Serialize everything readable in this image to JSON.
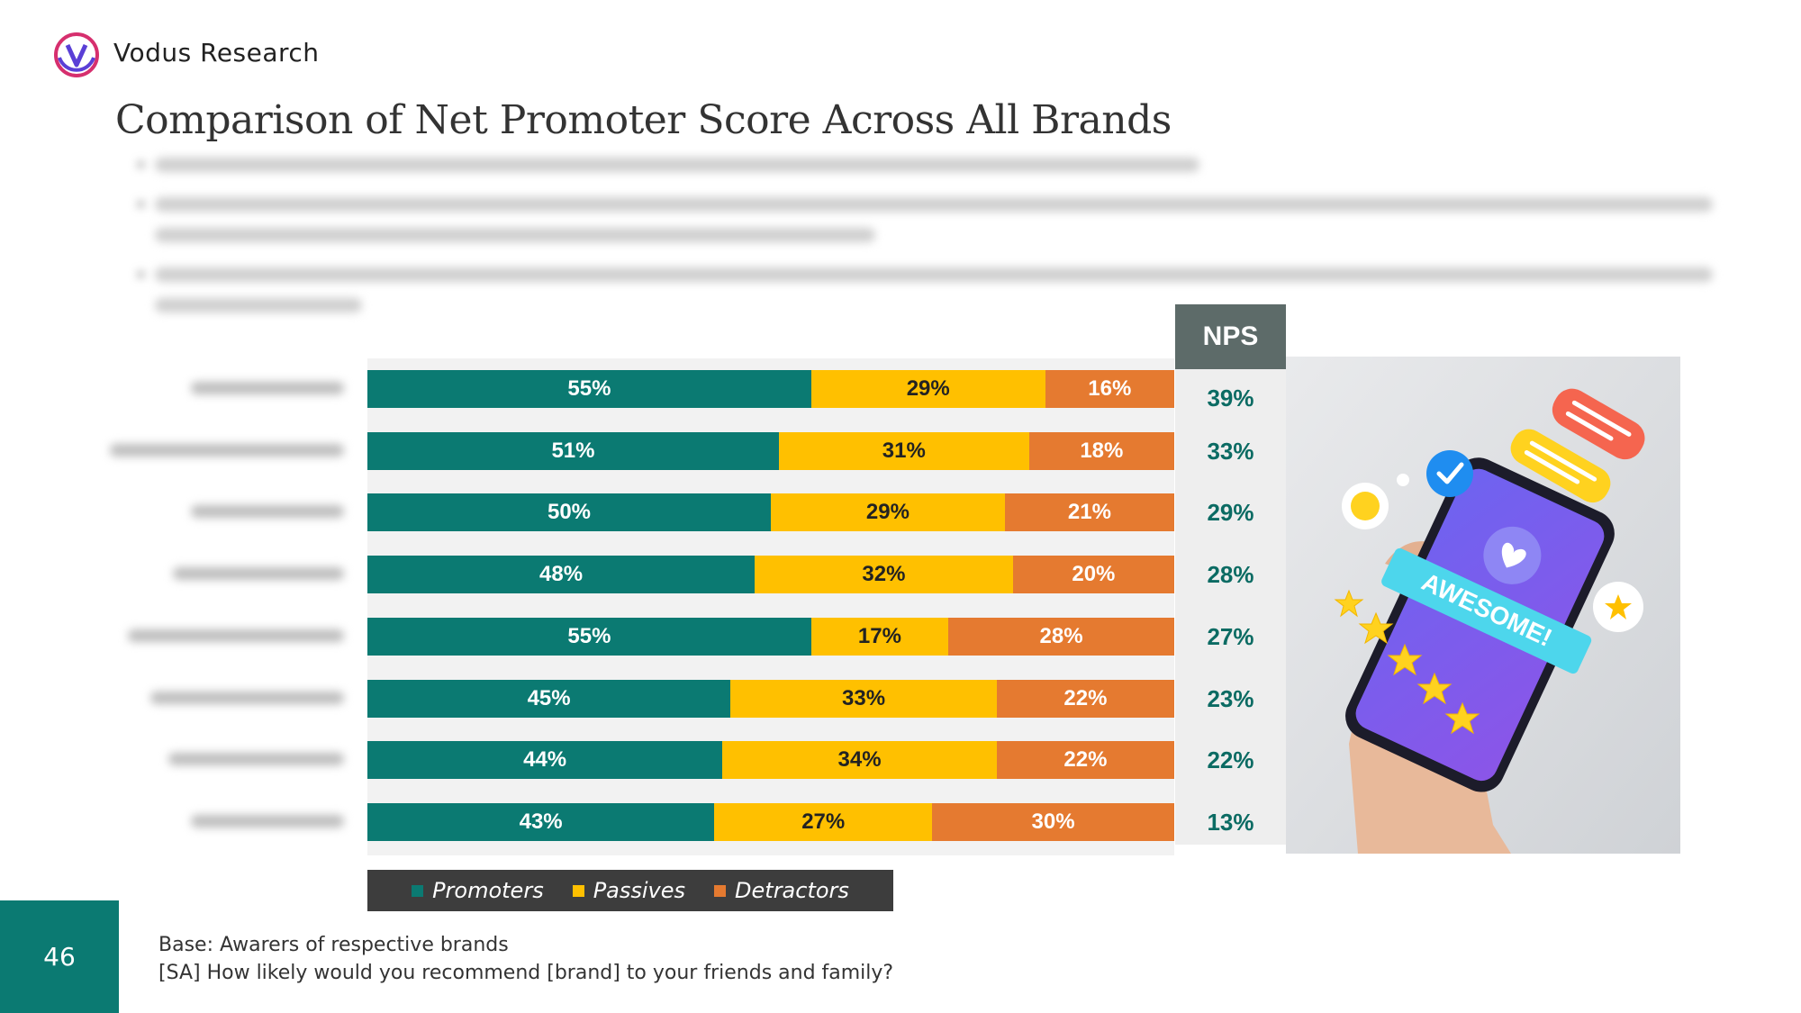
{
  "header": {
    "company": "Vodus Research",
    "title": "Comparison of Net Promoter Score Across All Brands"
  },
  "colors": {
    "promoters": "#0b7a72",
    "passives": "#ffc000",
    "detractors": "#e57a30",
    "nps_header": "#5d6b69",
    "nps_text": "#0b6b63",
    "accent": "#0b7a72"
  },
  "chart_data": {
    "type": "bar",
    "orientation": "horizontal",
    "stacked": true,
    "series": [
      {
        "name": "Promoters",
        "values": [
          55,
          51,
          50,
          48,
          55,
          45,
          44,
          43
        ]
      },
      {
        "name": "Passives",
        "values": [
          29,
          31,
          29,
          32,
          17,
          33,
          34,
          27
        ]
      },
      {
        "name": "Detractors",
        "values": [
          16,
          18,
          21,
          20,
          28,
          22,
          22,
          30
        ]
      }
    ],
    "labels": {
      "promoters": [
        "55%",
        "51%",
        "50%",
        "48%",
        "55%",
        "45%",
        "44%",
        "43%"
      ],
      "passives": [
        "29%",
        "31%",
        "29%",
        "32%",
        "17%",
        "33%",
        "34%",
        "27%"
      ],
      "detractors": [
        "16%",
        "18%",
        "21%",
        "20%",
        "28%",
        "22%",
        "22%",
        "30%"
      ]
    },
    "nps": {
      "header": "NPS",
      "values": [
        "39%",
        "33%",
        "29%",
        "28%",
        "27%",
        "23%",
        "22%",
        "13%"
      ]
    },
    "legend": {
      "placement": "bottom"
    },
    "xlim": [
      0,
      100
    ]
  },
  "footer": {
    "page_number": "46",
    "base": "Base: Awarers of respective brands",
    "question": "[SA] How likely would you recommend [brand] to your friends and family?"
  },
  "illustration": {
    "badge": "AWESOME!"
  }
}
